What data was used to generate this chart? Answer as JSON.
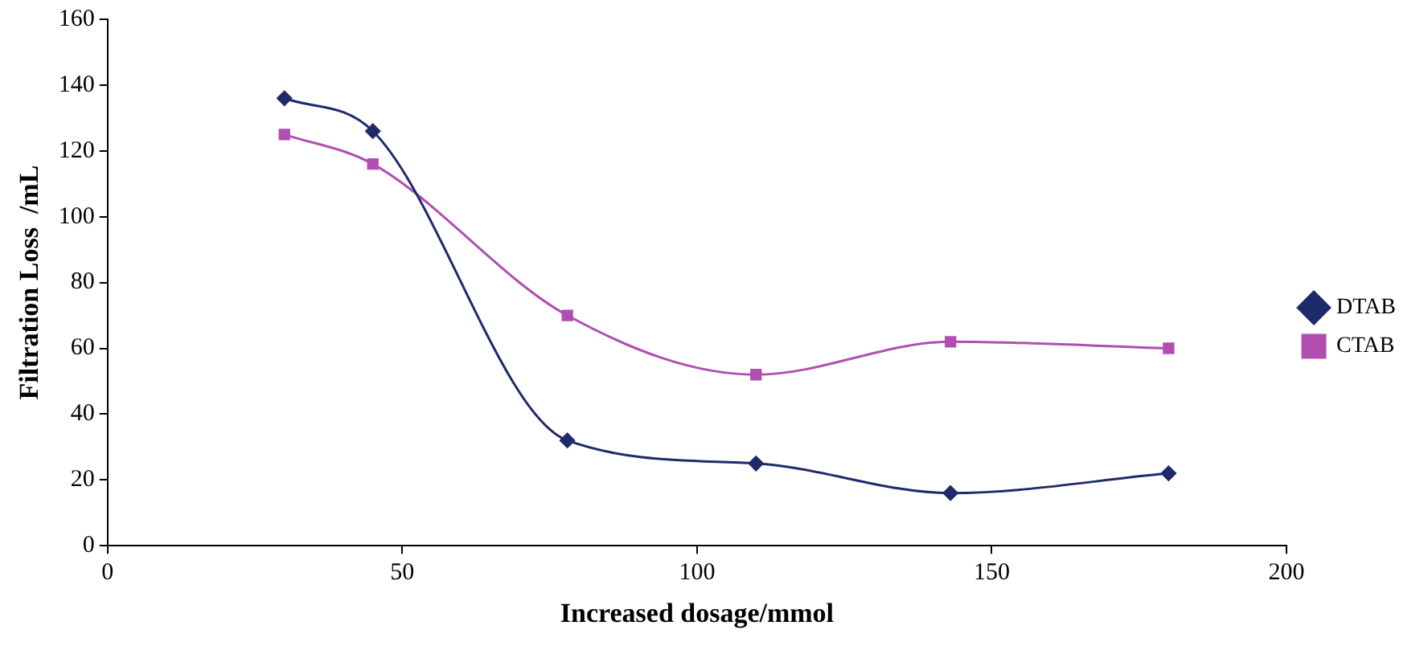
{
  "chart_data": {
    "type": "line",
    "xlabel": "Increased dosage/mmol",
    "ylabel": "Filtration Loss  /mL",
    "xlim": [
      0,
      200
    ],
    "xticks": [
      0,
      50,
      100,
      150,
      200
    ],
    "ylim": [
      0,
      160
    ],
    "yticks": [
      0,
      20,
      40,
      60,
      80,
      100,
      120,
      140,
      160
    ],
    "grid": false,
    "legend": "right",
    "line_style": "solid",
    "series": [
      {
        "name": "DTAB",
        "color": "#1f2a6b",
        "marker": "diamond",
        "x": [
          30,
          45,
          78,
          110,
          143,
          180
        ],
        "values": [
          136,
          126,
          32,
          25,
          16,
          22
        ]
      },
      {
        "name": "CTAB",
        "color": "#b04fb0",
        "marker": "square",
        "x": [
          30,
          45,
          78,
          110,
          143,
          180
        ],
        "values": [
          125,
          116,
          70,
          52,
          62,
          60
        ]
      }
    ]
  }
}
